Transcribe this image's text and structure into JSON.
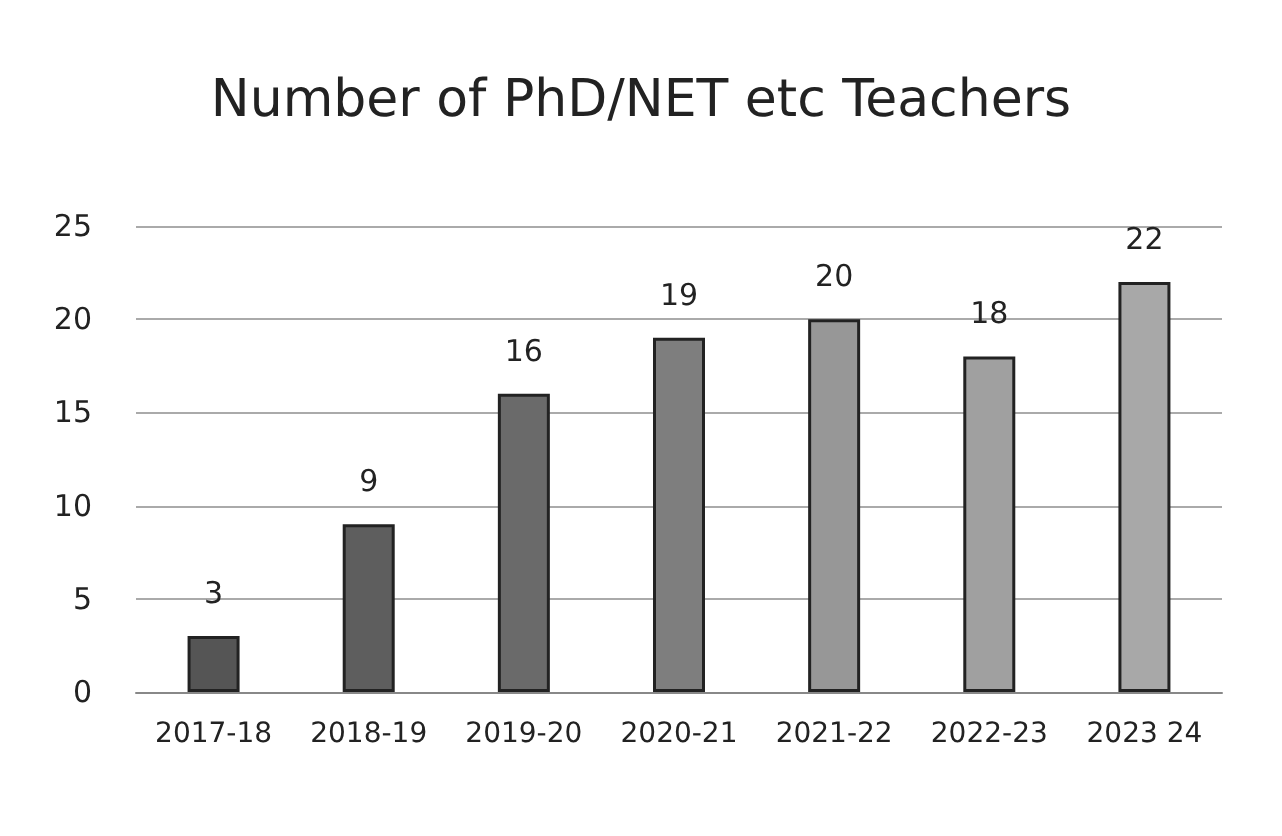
{
  "chart_data": {
    "type": "bar",
    "title": "Number of PhD/NET etc Teachers",
    "categories": [
      "2017-18",
      "2018-19",
      "2019-20",
      "2020-21",
      "2021-22",
      "2022-23",
      "2023 24"
    ],
    "values": [
      3,
      9,
      16,
      19,
      20,
      18,
      22
    ],
    "colors": [
      "#555555",
      "#5e5e5e",
      "#6a6a6a",
      "#7e7e7e",
      "#979797",
      "#a0a0a0",
      "#a8a8a8"
    ],
    "ylim": [
      0,
      25
    ],
    "yticks": [
      0,
      5,
      10,
      15,
      20,
      25
    ],
    "grid": "y",
    "data_labels": true
  }
}
